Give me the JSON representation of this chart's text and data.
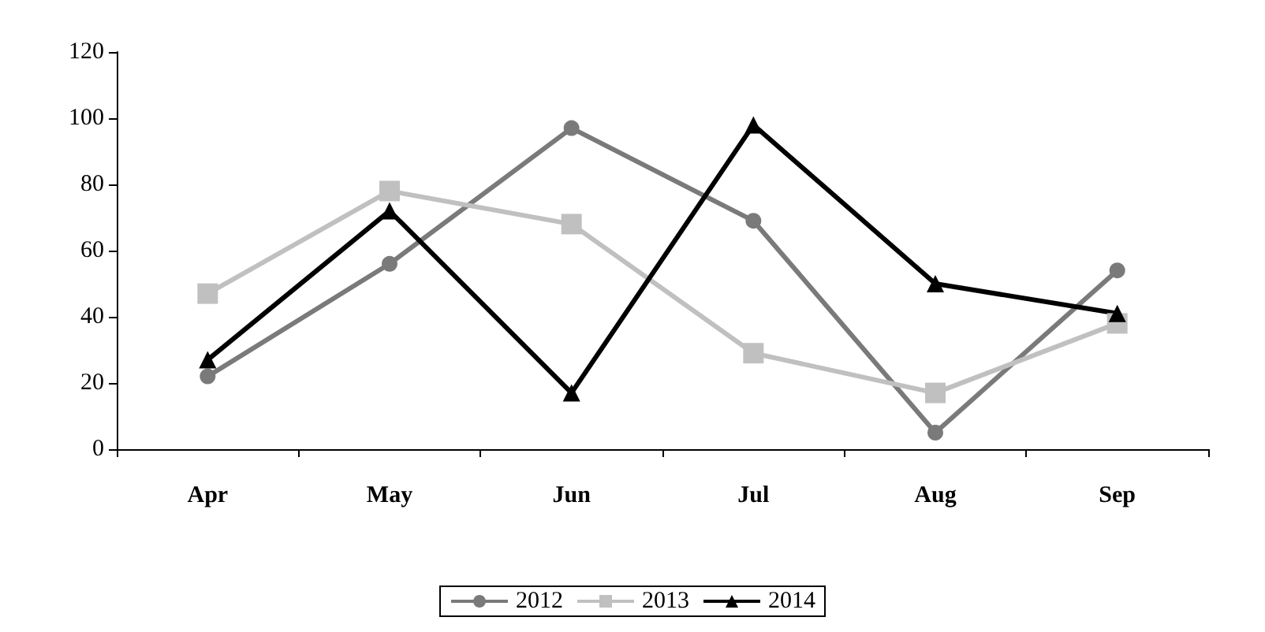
{
  "chart_data": {
    "type": "line",
    "categories": [
      "Apr",
      "May",
      "Jun",
      "Jul",
      "Aug",
      "Sep"
    ],
    "series": [
      {
        "name": "2012",
        "color": "#7a7a7a",
        "marker": "circle",
        "values": [
          22,
          56,
          97,
          69,
          5,
          54
        ]
      },
      {
        "name": "2013",
        "color": "#c0c0c0",
        "marker": "square",
        "values": [
          47,
          78,
          68,
          29,
          17,
          38
        ]
      },
      {
        "name": "2014",
        "color": "#000000",
        "marker": "triangle",
        "values": [
          27,
          72,
          17,
          98,
          50,
          41
        ]
      }
    ],
    "ylim": [
      0,
      120
    ],
    "yticks": [
      0,
      20,
      40,
      60,
      80,
      100,
      120
    ],
    "grid": false,
    "legend": "bottom"
  }
}
